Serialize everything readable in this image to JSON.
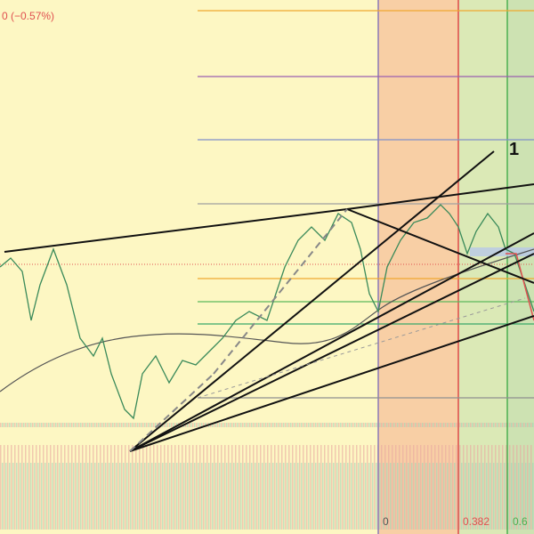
{
  "header": {
    "change": "0 (−0.57%)"
  },
  "annotations": {
    "wave_label": "1"
  },
  "fib_time_labels": [
    "0",
    "0.382",
    "0.6"
  ]
}
